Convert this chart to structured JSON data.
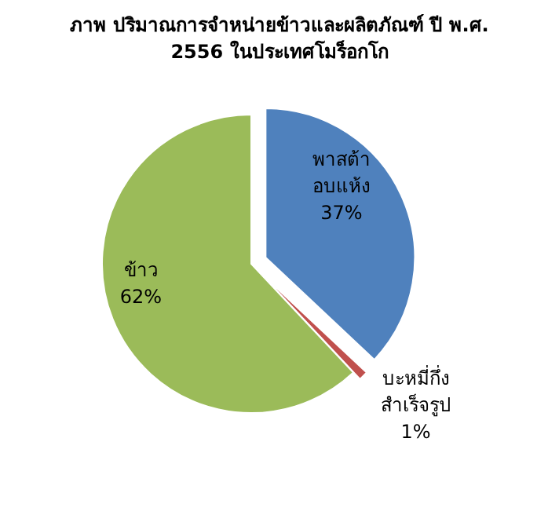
{
  "chart_data": {
    "type": "pie",
    "title": "ภาพ ปริมาณการจำหน่ายข้าวและผลิตภัณฑ์ ปี พ.ศ.\n2556 ในประเทศโมร็อกโก",
    "categories": [
      "พาสต้า\nอบแห้ง",
      "บะหมี่กึ่ง\nสำเร็จรูป",
      "ข้าว"
    ],
    "values": [
      37,
      1,
      62
    ],
    "colors": [
      "#4f81bd",
      "#c0504d",
      "#9bbb59"
    ],
    "value_labels": [
      "37%",
      "1%",
      "62%"
    ],
    "legend": false
  }
}
